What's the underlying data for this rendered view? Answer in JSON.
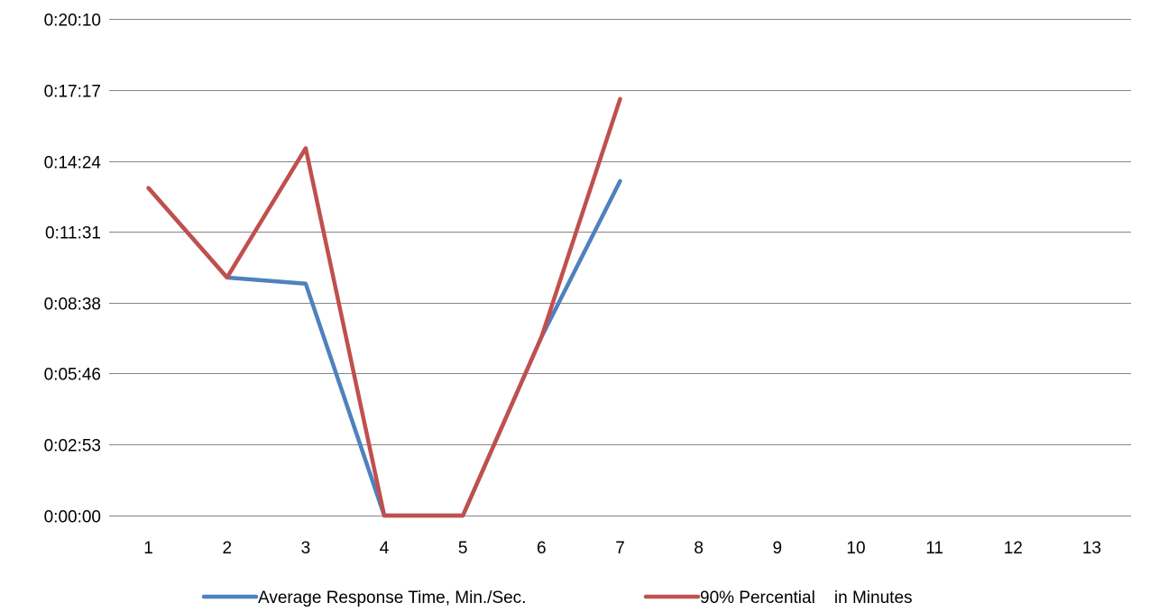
{
  "chart_data": {
    "type": "line",
    "title": "",
    "xlabel": "",
    "ylabel": "",
    "x": [
      1,
      2,
      3,
      4,
      5,
      6,
      7,
      8,
      9,
      10,
      11,
      12,
      13
    ],
    "y_ticks": [
      "0:00:00",
      "0:02:53",
      "0:05:46",
      "0:08:38",
      "0:11:31",
      "0:14:24",
      "0:17:17",
      "0:20:10"
    ],
    "y_tick_seconds": [
      0,
      173,
      346,
      518,
      691,
      864,
      1037,
      1210
    ],
    "ylim_seconds": [
      0,
      1210
    ],
    "grid": true,
    "legend_position": "bottom",
    "series": [
      {
        "name": "Average Response Time, Min./Sec.",
        "color": "#4f81bd",
        "values": [
          "0:13:18",
          "0:09:40",
          "0:09:25",
          "0:00:00",
          "0:00:00",
          "0:07:15",
          "0:13:35",
          null,
          null,
          null,
          null,
          null,
          null
        ],
        "values_seconds": [
          798,
          580,
          565,
          0,
          0,
          435,
          815,
          null,
          null,
          null,
          null,
          null,
          null
        ]
      },
      {
        "name": "90% Percential    in Minutes",
        "color": "#c0504d",
        "values": [
          "0:13:18",
          "0:09:40",
          "0:14:55",
          "0:00:00",
          "0:00:00",
          "0:07:15",
          "0:16:55",
          null,
          null,
          null,
          null,
          null,
          null
        ],
        "values_seconds": [
          798,
          580,
          895,
          0,
          0,
          435,
          1015,
          null,
          null,
          null,
          null,
          null,
          null
        ]
      }
    ]
  }
}
